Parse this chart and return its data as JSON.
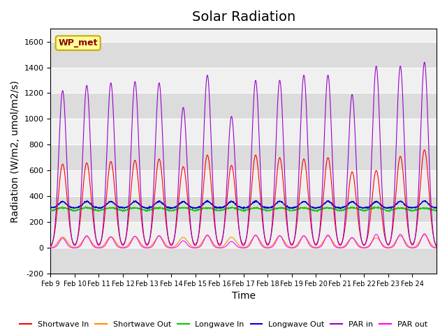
{
  "title": "Solar Radiation",
  "xlabel": "Time",
  "ylabel": "Radiation (W/m2, umol/m2/s)",
  "ylim": [
    -200,
    1700
  ],
  "yticks": [
    -200,
    0,
    200,
    400,
    600,
    800,
    1000,
    1200,
    1400,
    1600
  ],
  "x_labels": [
    "Feb 9",
    "Feb 10",
    "Feb 11",
    "Feb 12",
    "Feb 13",
    "Feb 14",
    "Feb 15",
    "Feb 16",
    "Feb 17",
    "Feb 18",
    "Feb 19",
    "Feb 20",
    "Feb 21",
    "Feb 22",
    "Feb 23",
    "Feb 24"
  ],
  "station_label": "WP_met",
  "colors": {
    "shortwave_in": "#ff0000",
    "shortwave_out": "#ff8c00",
    "longwave_in": "#00cc00",
    "longwave_out": "#0000cc",
    "par_in": "#9900cc",
    "par_out": "#ff00ff"
  },
  "plot_bg_color": "#f0f0f0",
  "legend_entries": [
    "Shortwave In",
    "Shortwave Out",
    "Longwave In",
    "Longwave Out",
    "PAR in",
    "PAR out"
  ],
  "title_fontsize": 14,
  "axis_fontsize": 10
}
